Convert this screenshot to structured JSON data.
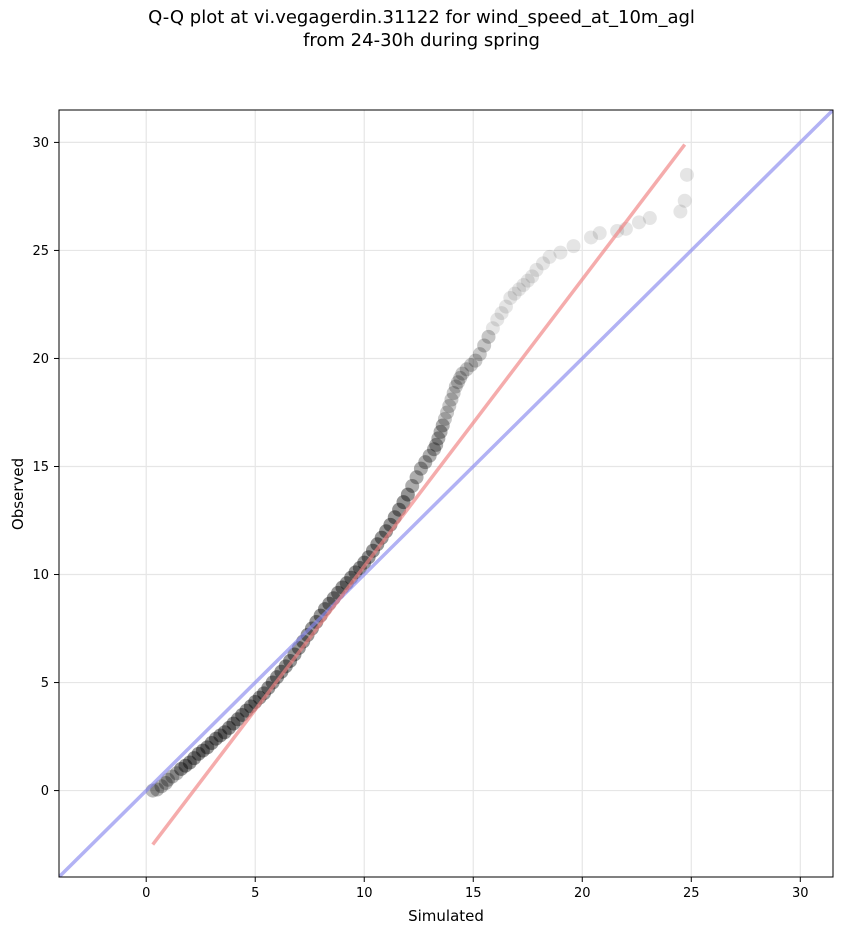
{
  "chart_data": {
    "type": "scatter",
    "title_line1": "Q-Q plot at vi.vegagerdin.31122 for wind_speed_at_10m_agl",
    "title_line2": "from 24-30h during spring",
    "xlabel": "Simulated",
    "ylabel": "Observed",
    "xlim": [
      -4.0,
      31.5
    ],
    "ylim": [
      -4.0,
      31.5
    ],
    "xticks": [
      0,
      5,
      10,
      15,
      20,
      25,
      30
    ],
    "yticks": [
      0,
      5,
      10,
      15,
      20,
      25,
      30
    ],
    "grid": true,
    "lines": [
      {
        "name": "identity",
        "color": "#8888ee",
        "x": [
          -4.0,
          31.5
        ],
        "y": [
          -4.0,
          31.5
        ]
      },
      {
        "name": "fit",
        "color": "#f08080",
        "x": [
          0.3,
          24.7
        ],
        "y": [
          -2.5,
          29.9
        ]
      }
    ],
    "points": {
      "color": "#000000",
      "x": [
        0.3,
        0.5,
        0.7,
        0.9,
        1.0,
        1.2,
        1.4,
        1.6,
        1.8,
        2.0,
        2.2,
        2.4,
        2.6,
        2.8,
        3.0,
        3.2,
        3.4,
        3.6,
        3.8,
        4.0,
        4.2,
        4.4,
        4.6,
        4.8,
        5.0,
        5.2,
        5.4,
        5.6,
        5.8,
        6.0,
        6.2,
        6.4,
        6.6,
        6.8,
        7.0,
        7.2,
        7.4,
        7.6,
        7.8,
        8.0,
        8.2,
        8.4,
        8.6,
        8.8,
        9.0,
        9.2,
        9.4,
        9.6,
        9.8,
        10.0,
        10.2,
        10.4,
        10.6,
        10.8,
        11.0,
        11.2,
        11.4,
        11.6,
        11.8,
        12.0,
        12.2,
        12.4,
        12.6,
        12.8,
        13.0,
        13.2,
        13.3,
        13.4,
        13.5,
        13.6,
        13.7,
        13.8,
        13.9,
        14.0,
        14.1,
        14.2,
        14.3,
        14.4,
        14.5,
        14.7,
        14.9,
        15.1,
        15.3,
        15.5,
        15.7,
        15.9,
        16.1,
        16.3,
        16.5,
        16.7,
        16.9,
        17.1,
        17.3,
        17.5,
        17.7,
        17.9,
        18.2,
        18.5,
        19.0,
        19.6,
        20.4,
        20.8,
        21.6,
        22.0,
        22.6,
        23.1,
        24.5,
        24.7,
        24.8
      ],
      "y": [
        0.0,
        0.05,
        0.2,
        0.35,
        0.5,
        0.65,
        0.8,
        1.0,
        1.15,
        1.3,
        1.5,
        1.7,
        1.85,
        2.0,
        2.2,
        2.4,
        2.55,
        2.7,
        2.9,
        3.1,
        3.3,
        3.5,
        3.7,
        3.9,
        4.1,
        4.3,
        4.5,
        4.75,
        5.0,
        5.25,
        5.5,
        5.75,
        6.0,
        6.3,
        6.6,
        6.9,
        7.2,
        7.5,
        7.8,
        8.1,
        8.4,
        8.65,
        8.9,
        9.15,
        9.4,
        9.6,
        9.85,
        10.1,
        10.3,
        10.55,
        10.8,
        11.1,
        11.4,
        11.7,
        12.0,
        12.3,
        12.65,
        13.0,
        13.35,
        13.7,
        14.1,
        14.5,
        14.9,
        15.2,
        15.5,
        15.8,
        16.0,
        16.3,
        16.6,
        16.9,
        17.2,
        17.5,
        17.8,
        18.1,
        18.4,
        18.7,
        18.9,
        19.1,
        19.3,
        19.5,
        19.7,
        19.9,
        20.2,
        20.6,
        21.0,
        21.4,
        21.8,
        22.1,
        22.4,
        22.8,
        23.0,
        23.2,
        23.4,
        23.6,
        23.8,
        24.1,
        24.4,
        24.7,
        24.9,
        25.2,
        25.6,
        25.8,
        25.9,
        26.0,
        26.3,
        26.5,
        26.8,
        27.3,
        28.5
      ]
    }
  }
}
